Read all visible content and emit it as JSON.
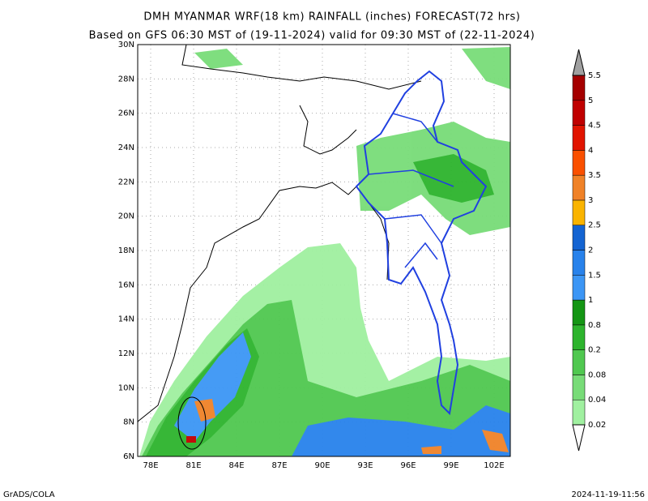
{
  "title": "DMH MYANMAR WRF(18 km) RAINFALL (inches) FORECAST(72 hrs)",
  "subtitle": "Based on GFS 06:30 MST of (19-11-2024) valid for 09:30 MST of (22-11-2024)",
  "map": {
    "lat_labels": [
      "30N",
      "28N",
      "26N",
      "24N",
      "22N",
      "20N",
      "18N",
      "16N",
      "14N",
      "12N",
      "10N",
      "8N",
      "6N"
    ],
    "lon_labels": [
      "78E",
      "81E",
      "84E",
      "87E",
      "90E",
      "93E",
      "96E",
      "99E",
      "102E"
    ]
  },
  "colorbar": {
    "labels": [
      "0.02",
      "0.04",
      "0.08",
      "0.2",
      "0.8",
      "1",
      "1.5",
      "2",
      "2.5",
      "3",
      "3.5",
      "4",
      "4.5",
      "5",
      "5.5"
    ],
    "colors": [
      "#a0f0a0",
      "#78dc78",
      "#50c850",
      "#2db42d",
      "#149614",
      "#3c96f5",
      "#2882eb",
      "#1464d2",
      "#fab400",
      "#f08228",
      "#fa5000",
      "#e11400",
      "#c00000",
      "#a50000"
    ],
    "under_color": "#ffffff",
    "over_color": "#a0a0a0"
  },
  "footer": {
    "left": "GrADS/COLA",
    "right": "2024-11-19-11:56"
  }
}
